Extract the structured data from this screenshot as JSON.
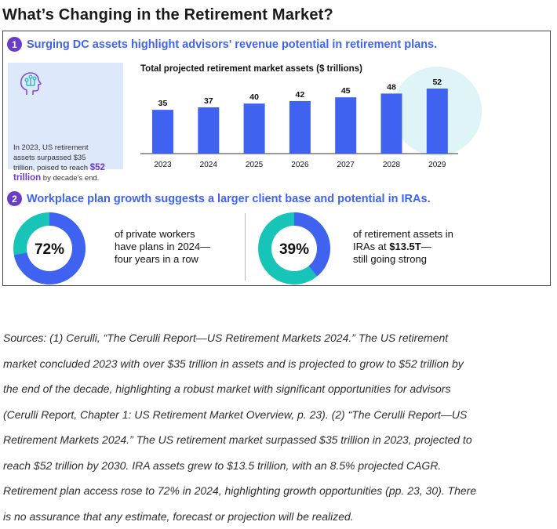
{
  "page_title": "What’s Changing in the Retirement Market?",
  "section1": {
    "number": "1",
    "heading": "Surging DC assets highlight advisors' revenue potential in retirement plans."
  },
  "info": {
    "icon": "head-network-icon",
    "text_line1": "In 2023, US retirement",
    "text_line2": "assets surpassed $35",
    "text_line3": "trillion, poised to reach",
    "highlight_value": "$52",
    "highlight_unit": "trillion",
    "text_tail": "by decade's end."
  },
  "chart_data": {
    "type": "bar",
    "title": "Total projected retirement market assets ($ trillions)",
    "categories": [
      "2023",
      "2024",
      "2025",
      "2026",
      "2027",
      "2028",
      "2029"
    ],
    "values": [
      35,
      37,
      40,
      42,
      45,
      48,
      52
    ],
    "xlabel": "",
    "ylabel": "",
    "ylim": [
      0,
      52
    ],
    "grid": false,
    "highlighted_category": "2029",
    "bar_color": "#3f63f0",
    "highlight_color": "#dff4f6"
  },
  "section2": {
    "number": "2",
    "heading": "Workplace plan growth suggests a larger client base and potential in IRAs."
  },
  "stats": [
    {
      "percent_label": "72%",
      "fraction": 0.72,
      "line1": "of private workers",
      "line2": "have plans in 2024—",
      "line3": "four years in a row",
      "main_color": "#3f63f0",
      "rest_color": "#17c4b8"
    },
    {
      "percent_label": "39%",
      "fraction": 0.39,
      "line1": "of retirement assets in",
      "line2_pre": "IRAs at ",
      "line2_bold": "$13.5T",
      "line2_post": "—",
      "line3": "still going strong",
      "main_color": "#3f63f0",
      "rest_color": "#17c4b8"
    }
  ],
  "sources": {
    "lines": [
      "Sources: (1) Cerulli, “The Cerulli Report—US Retirement Markets 2024.” The US retirement",
      "market concluded 2023 with over $35 trillion in assets and is projected to grow to $52 trillion by",
      "the end of the decade, highlighting a robust market with significant opportunities for advisors",
      "(Cerulli Report, Chapter 1: US Retirement Market Overview, p. 23). (2) “The Cerulli Report—US",
      "Retirement Markets 2024.” The US retirement market surpassed $35 trillion in 2023, projected to",
      "reach $52 trillion by 2030. IRA assets grew to $13.5 trillion, with an 8.5% projected CAGR.",
      "Retirement plan access rose to 72% in 2024, highlighting growth opportunities (pp. 23, 30). There",
      "is no assurance that any estimate, forecast or projection will be realized."
    ]
  }
}
